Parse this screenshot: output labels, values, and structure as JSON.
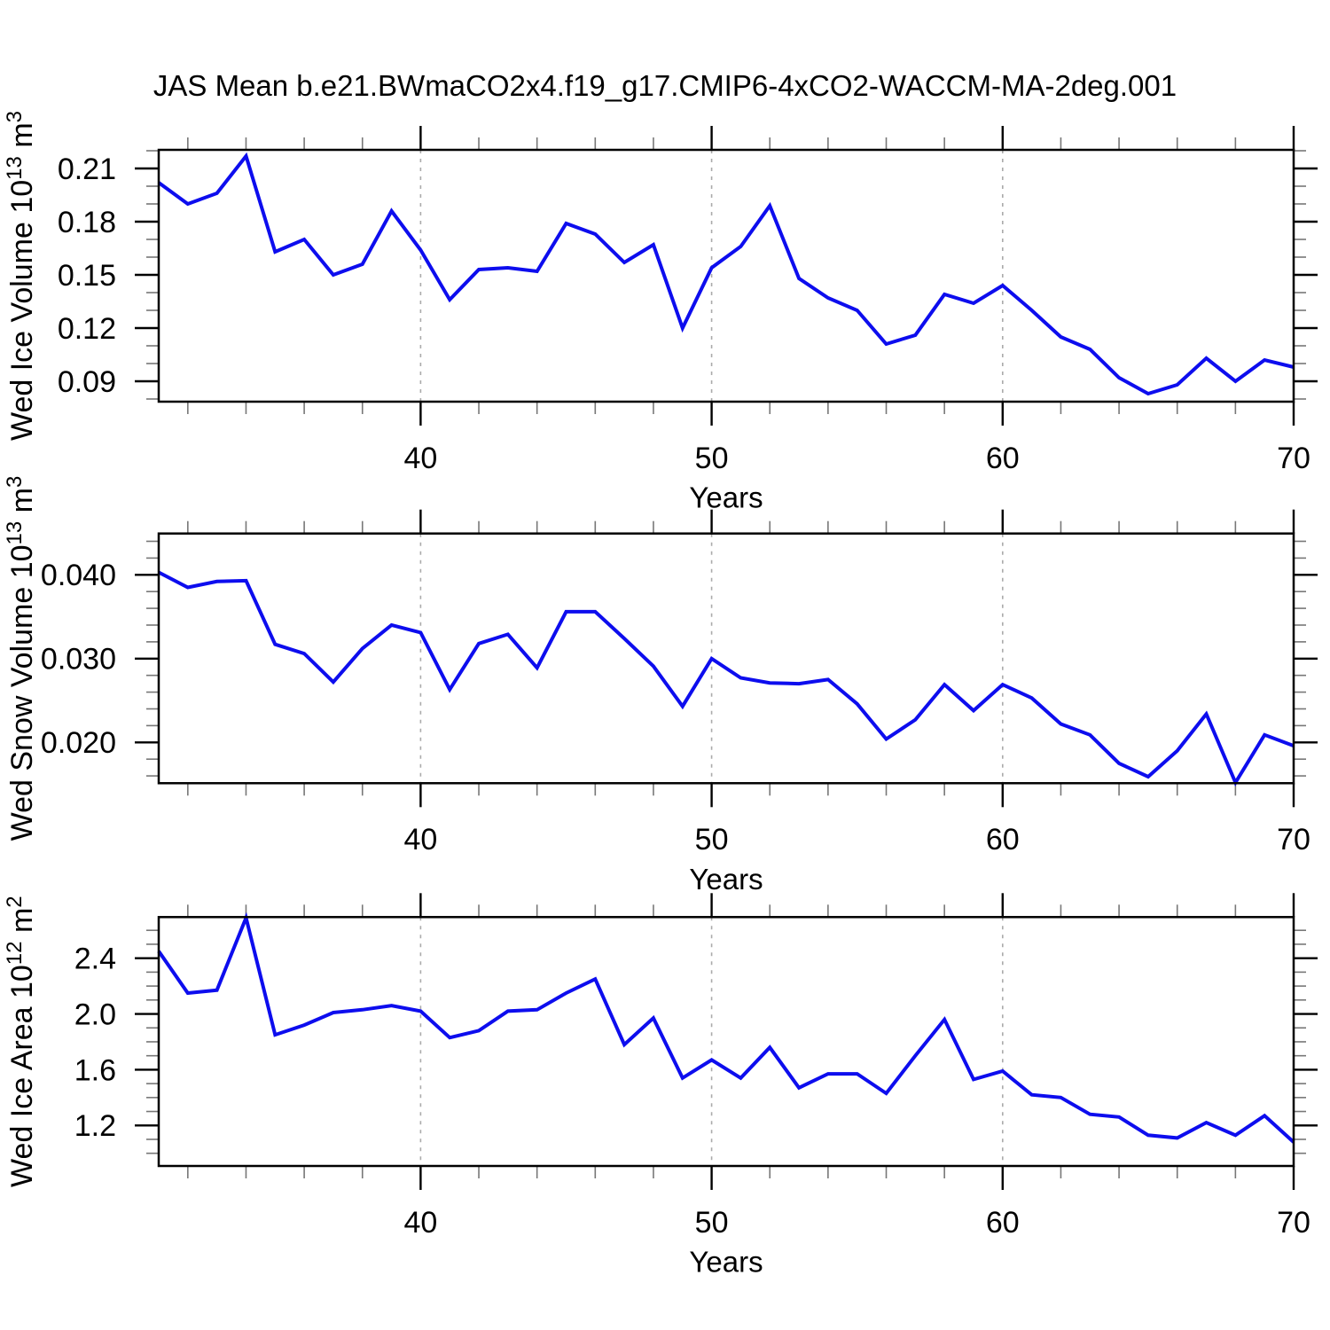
{
  "title": "JAS Mean b.e21.BWmaCO2x4.f19_g17.CMIP6-4xCO2-WACCM-MA-2deg.001",
  "colors": {
    "line": "#0d0dee",
    "grid": "#aaaaaa",
    "axis": "#000000",
    "minor_tick": "#777777",
    "background": "#ffffff"
  },
  "chart_data": {
    "type": "line",
    "title": "JAS Mean b.e21.BWmaCO2x4.f19_g17.CMIP6-4xCO2-WACCM-MA-2deg.001",
    "xlabel": "Years",
    "x": [
      31,
      32,
      33,
      34,
      35,
      36,
      37,
      38,
      39,
      40,
      41,
      42,
      43,
      44,
      45,
      46,
      47,
      48,
      49,
      50,
      51,
      52,
      53,
      54,
      55,
      56,
      57,
      58,
      59,
      60,
      61,
      62,
      63,
      64,
      65,
      66,
      67,
      68,
      69,
      70
    ],
    "xlim": [
      31,
      70
    ],
    "x_major_ticks": [
      40,
      50,
      60,
      70
    ],
    "x_major_tick_labels": [
      "40",
      "50",
      "60",
      "70"
    ],
    "x_minor_step": 2,
    "x_gridlines": [
      40,
      50,
      60
    ],
    "grid_style": "dashed vertical gridlines at years 40, 50, 60",
    "legend": null,
    "panels": [
      {
        "name": "ice-volume",
        "ylabel": "Wed Ice Volume 10^13 m^3",
        "ylabel_parts": [
          {
            "text": "Wed Ice Volume 10"
          },
          {
            "text": "13",
            "sup": true
          },
          {
            "text": " m"
          },
          {
            "text": "3",
            "sup": true
          }
        ],
        "yticks": [
          0.09,
          0.12,
          0.15,
          0.18,
          0.21
        ],
        "ytick_labels": [
          "0.09",
          "0.12",
          "0.15",
          "0.18",
          "0.21"
        ],
        "y_minor_step": 0.01,
        "ylim": [
          0.0785,
          0.2205
        ],
        "values": [
          0.202,
          0.19,
          0.196,
          0.217,
          0.163,
          0.17,
          0.15,
          0.156,
          0.186,
          0.164,
          0.136,
          0.153,
          0.154,
          0.152,
          0.179,
          0.173,
          0.157,
          0.167,
          0.12,
          0.154,
          0.166,
          0.189,
          0.148,
          0.137,
          0.13,
          0.111,
          0.116,
          0.139,
          0.134,
          0.144,
          0.13,
          0.115,
          0.108,
          0.092,
          0.083,
          0.088,
          0.103,
          0.09,
          0.102,
          0.098
        ]
      },
      {
        "name": "snow-volume",
        "ylabel": "Wed Snow Volume 10^13 m^3",
        "ylabel_parts": [
          {
            "text": "Wed Snow Volume 10"
          },
          {
            "text": "13",
            "sup": true
          },
          {
            "text": " m"
          },
          {
            "text": "3",
            "sup": true
          }
        ],
        "yticks": [
          0.02,
          0.03,
          0.04
        ],
        "ytick_labels": [
          "0.020",
          "0.030",
          "0.040"
        ],
        "y_minor_step": 0.002,
        "ylim": [
          0.01513,
          0.04493
        ],
        "values": [
          0.0403,
          0.0385,
          0.0392,
          0.0393,
          0.0317,
          0.0306,
          0.0272,
          0.0312,
          0.034,
          0.0331,
          0.0263,
          0.0318,
          0.0329,
          0.0289,
          0.0356,
          0.0356,
          0.0324,
          0.0291,
          0.0243,
          0.03,
          0.0277,
          0.0271,
          0.027,
          0.0275,
          0.0246,
          0.0204,
          0.0227,
          0.0269,
          0.0238,
          0.0269,
          0.0253,
          0.0222,
          0.0209,
          0.0175,
          0.0159,
          0.019,
          0.0234,
          0.0152,
          0.0209,
          0.0196
        ]
      },
      {
        "name": "ice-area",
        "ylabel": "Wed Ice Area 10^12 m^2",
        "ylabel_parts": [
          {
            "text": "Wed Ice Area 10"
          },
          {
            "text": "12",
            "sup": true
          },
          {
            "text": " m"
          },
          {
            "text": "2",
            "sup": true
          }
        ],
        "yticks": [
          1.2,
          1.6,
          2.0,
          2.4
        ],
        "ytick_labels": [
          "1.2",
          "1.6",
          "2.0",
          "2.4"
        ],
        "y_minor_step": 0.1,
        "ylim": [
          0.909,
          2.695
        ],
        "values": [
          2.45,
          2.15,
          2.17,
          2.69,
          1.85,
          1.92,
          2.01,
          2.03,
          2.06,
          2.02,
          1.83,
          1.88,
          2.02,
          2.03,
          2.15,
          2.25,
          1.78,
          1.97,
          1.54,
          1.67,
          1.54,
          1.76,
          1.47,
          1.57,
          1.57,
          1.43,
          1.7,
          1.96,
          1.53,
          1.59,
          1.42,
          1.4,
          1.28,
          1.26,
          1.13,
          1.11,
          1.22,
          1.13,
          1.27,
          1.08
        ]
      }
    ]
  }
}
